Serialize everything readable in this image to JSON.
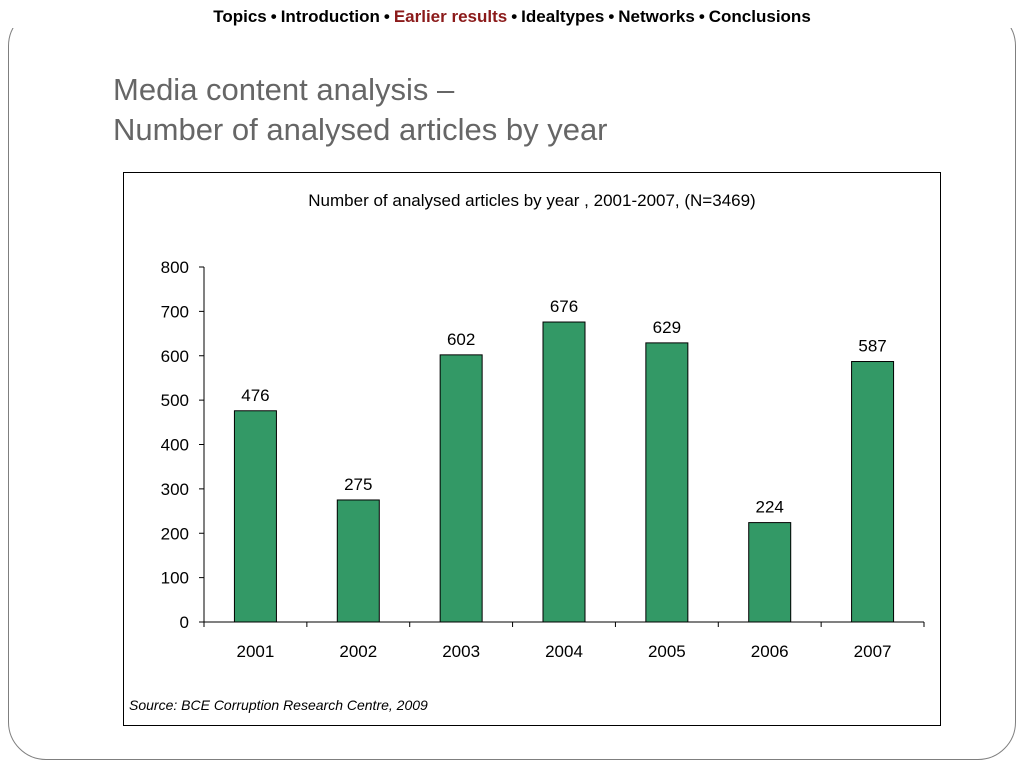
{
  "nav": {
    "items": [
      {
        "label": "Topics",
        "active": false
      },
      {
        "label": "Introduction",
        "active": false
      },
      {
        "label": "Earlier results",
        "active": true
      },
      {
        "label": "Idealtypes",
        "active": false
      },
      {
        "label": "Networks",
        "active": false
      },
      {
        "label": "Conclusions",
        "active": false
      }
    ],
    "separator": "•",
    "active_color": "#8b1a1a"
  },
  "slide": {
    "title_line1": "Media content analysis –",
    "title_line2": "Number of analysed articles by year"
  },
  "chart_data": {
    "type": "bar",
    "title": "Number of analysed articles by year , 2001-2007, (N=3469)",
    "xlabel": "",
    "ylabel": "",
    "categories": [
      "2001",
      "2002",
      "2003",
      "2004",
      "2005",
      "2006",
      "2007"
    ],
    "values": [
      476,
      275,
      602,
      676,
      629,
      224,
      587
    ],
    "ylim": [
      0,
      800
    ],
    "yticks": [
      0,
      100,
      200,
      300,
      400,
      500,
      600,
      700,
      800
    ],
    "bar_color": "#339966",
    "data_labels": true,
    "grid": false,
    "legend": "none"
  },
  "source": "Source: BCE Corruption Research Centre, 2009"
}
